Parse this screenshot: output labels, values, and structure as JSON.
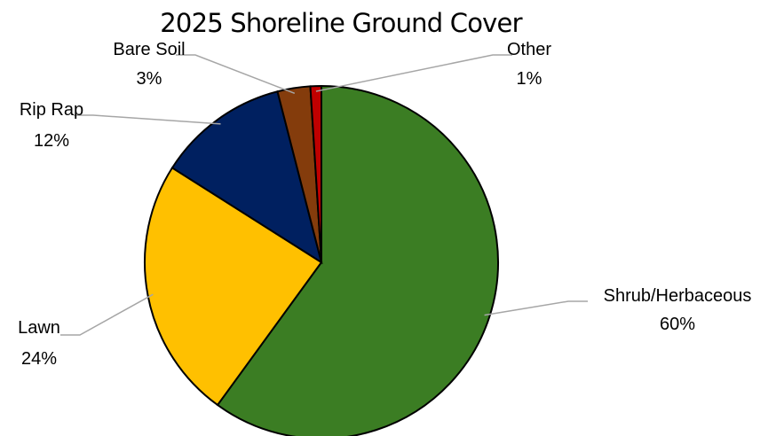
{
  "chart_data": {
    "type": "pie",
    "title": "2025 Shoreline Ground Cover",
    "slices": [
      {
        "label": "Shrub/Herbaceous",
        "value": 60,
        "display": "60%",
        "color": "#3b7d23"
      },
      {
        "label": "Lawn",
        "value": 24,
        "display": "24%",
        "color": "#ffc000"
      },
      {
        "label": "Rip Rap",
        "value": 12,
        "display": "12%",
        "color": "#002060"
      },
      {
        "label": "Bare Soil",
        "value": 3,
        "display": "3%",
        "color": "#843c0c"
      },
      {
        "label": "Other",
        "value": 1,
        "display": "1%",
        "color": "#c00000"
      }
    ],
    "start": "12 o'clock, clockwise",
    "data_labels": "outside with leader lines",
    "legend": "none"
  }
}
